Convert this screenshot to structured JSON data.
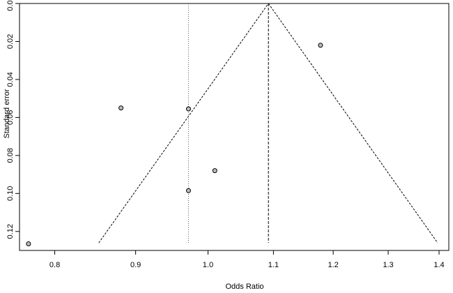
{
  "chart_data": {
    "type": "scatter",
    "plot_kind": "funnel",
    "xlabel": "Odds Ratio",
    "ylabel": "Standard error",
    "x_scale": "log",
    "y_reversed": true,
    "xlim": [
      0.76,
      1.42
    ],
    "ylim": [
      0.0,
      0.13
    ],
    "x_ticks": [
      0.8,
      0.9,
      1.0,
      1.1,
      1.2,
      1.3,
      1.4
    ],
    "x_tick_labels": [
      "0.8",
      "0.9",
      "1.0",
      "1.1",
      "1.2",
      "1.3",
      "1.4"
    ],
    "y_ticks": [
      0.0,
      0.02,
      0.04,
      0.06,
      0.08,
      0.1,
      0.12
    ],
    "y_tick_labels": [
      "0.00",
      "0.02",
      "0.04",
      "0.06",
      "0.08",
      "0.10",
      "0.12"
    ],
    "grid": false,
    "points": [
      {
        "x": 1.178,
        "y": 0.022
      },
      {
        "x": 0.881,
        "y": 0.055
      },
      {
        "x": 0.972,
        "y": 0.0555
      },
      {
        "x": 1.01,
        "y": 0.088
      },
      {
        "x": 0.972,
        "y": 0.0985
      },
      {
        "x": 0.77,
        "y": 0.1265
      }
    ],
    "pooled_estimate": 1.092,
    "reference_line": 0.972,
    "funnel": {
      "apex": {
        "x": 1.092,
        "y": 0.0
      },
      "left_bottom": {
        "x": 0.853,
        "y": 0.126
      },
      "right_bottom": {
        "x": 1.397,
        "y": 0.126
      }
    },
    "colors": {
      "point_fill": "#bdbdbd",
      "point_stroke": "#000000",
      "line": "#000000",
      "reference_line": "#555555"
    }
  }
}
